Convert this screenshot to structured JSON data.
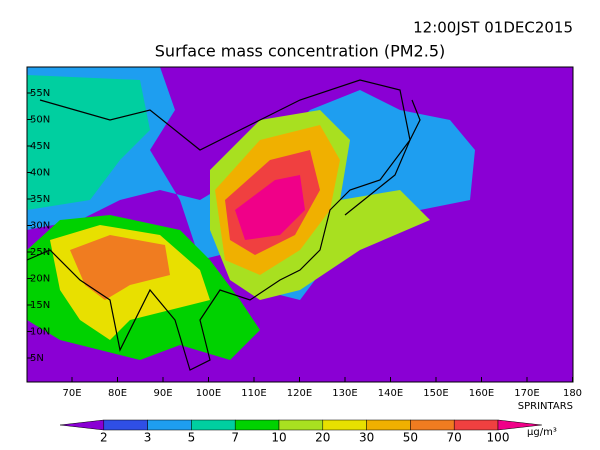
{
  "header": {
    "timestamp": "12:00JST 01DEC2015",
    "title": "Surface mass concentration (PM2.5)"
  },
  "map": {
    "lat_labels": [
      "55N",
      "50N",
      "45N",
      "40N",
      "35N",
      "30N",
      "25N",
      "20N",
      "15N",
      "10N",
      "5N"
    ],
    "lon_labels": [
      "70E",
      "80E",
      "90E",
      "100E",
      "110E",
      "120E",
      "130E",
      "140E",
      "150E",
      "160E",
      "170E",
      "180"
    ],
    "credit": "SPRINTARS"
  },
  "colorbar": {
    "labels": [
      "2",
      "3",
      "5",
      "7",
      "10",
      "20",
      "30",
      "50",
      "70",
      "100"
    ],
    "colors": [
      "#8a00d4",
      "#2f4fe6",
      "#1e9ef0",
      "#00cfa0",
      "#00d200",
      "#a8e020",
      "#e8e000",
      "#f0b000",
      "#f07c20",
      "#f04040",
      "#f00088"
    ],
    "unit": "μg/m³"
  }
}
